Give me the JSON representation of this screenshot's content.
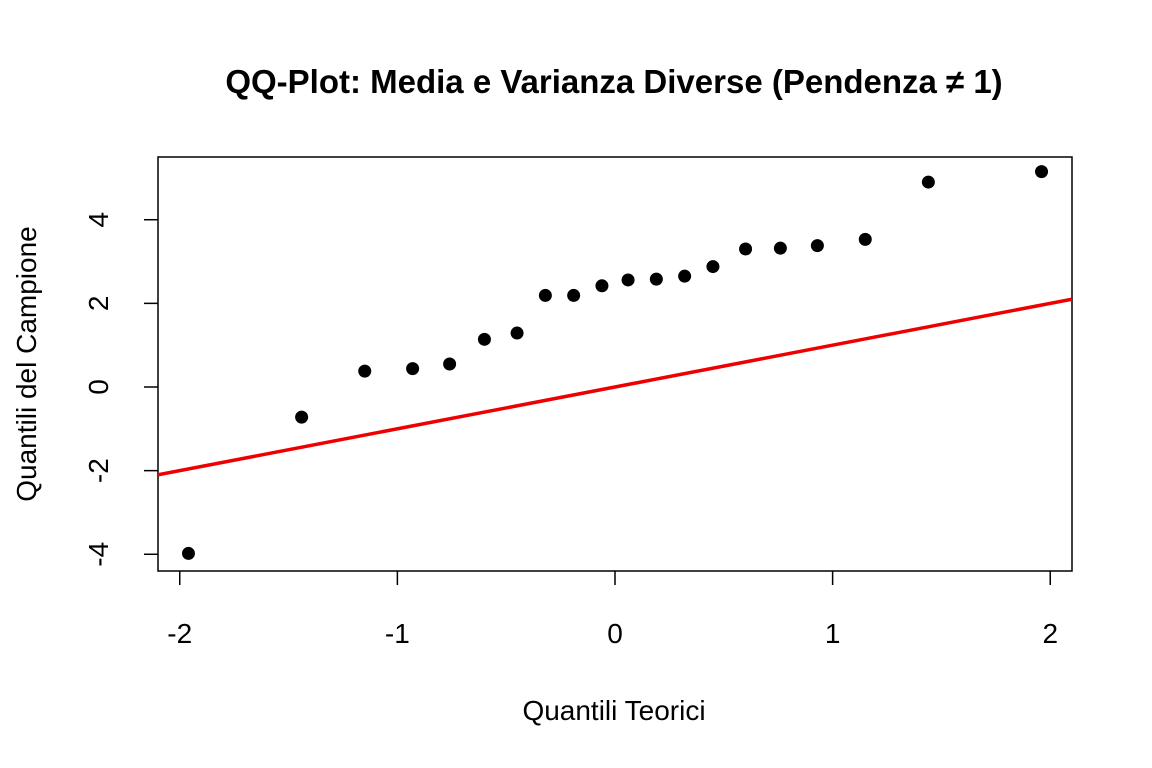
{
  "chart_data": {
    "type": "scatter",
    "title": "QQ-Plot: Media e Varianza Diverse (Pendenza ≠ 1)",
    "xlabel": "Quantili Teorici",
    "ylabel": "Quantili del Campione",
    "xlim": [
      -2.1,
      2.1
    ],
    "ylim": [
      -4.4,
      5.5
    ],
    "xticks": [
      -2,
      -1,
      0,
      1,
      2
    ],
    "xtick_labels": [
      "-2",
      "-1",
      "0",
      "1",
      "2"
    ],
    "yticks": [
      -4,
      -2,
      0,
      2,
      4
    ],
    "ytick_labels": [
      "-4",
      "-2",
      "0",
      "2",
      "4"
    ],
    "grid": false,
    "points": {
      "color": "#000000",
      "x": [
        -1.96,
        -1.44,
        -1.15,
        -0.93,
        -0.76,
        -0.6,
        -0.45,
        -0.32,
        -0.19,
        -0.06,
        0.06,
        0.19,
        0.32,
        0.45,
        0.6,
        0.76,
        0.93,
        1.15,
        1.44,
        1.96
      ],
      "y": [
        -3.98,
        -0.72,
        0.38,
        0.44,
        0.55,
        1.14,
        1.29,
        2.19,
        2.19,
        2.42,
        2.56,
        2.58,
        2.65,
        2.88,
        3.3,
        3.32,
        3.38,
        3.53,
        4.9,
        5.15
      ]
    },
    "reference_line": {
      "color": "#ee0000",
      "slope": 1,
      "intercept": 0
    }
  }
}
